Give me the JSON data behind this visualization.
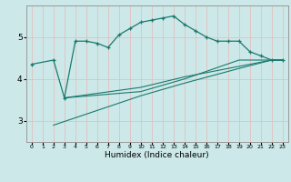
{
  "title": "",
  "xlabel": "Humidex (Indice chaleur)",
  "ylabel": "",
  "bg_color": "#cce8e8",
  "line_color": "#1a7a6e",
  "grid_color": "#b8d4d4",
  "xlim": [
    -0.5,
    23.5
  ],
  "ylim": [
    2.5,
    5.75
  ],
  "yticks": [
    3,
    4,
    5
  ],
  "xticks": [
    0,
    1,
    2,
    3,
    4,
    5,
    6,
    7,
    8,
    9,
    10,
    11,
    12,
    13,
    14,
    15,
    16,
    17,
    18,
    19,
    20,
    21,
    22,
    23
  ],
  "line1": {
    "x": [
      0,
      2,
      3,
      4,
      5,
      6,
      7,
      8,
      9,
      10,
      11,
      12,
      13,
      14,
      15,
      16,
      17,
      18,
      19,
      20,
      21,
      22,
      23
    ],
    "y": [
      4.35,
      4.45,
      3.55,
      4.9,
      4.9,
      4.85,
      4.75,
      5.05,
      5.2,
      5.35,
      5.4,
      5.45,
      5.5,
      5.3,
      5.15,
      5.0,
      4.9,
      4.9,
      4.9,
      4.65,
      4.55,
      4.45,
      4.45
    ]
  },
  "line2": {
    "x": [
      3,
      10,
      14,
      19,
      22,
      23
    ],
    "y": [
      3.55,
      3.7,
      4.0,
      4.45,
      4.45,
      4.45
    ]
  },
  "line3": {
    "x": [
      3,
      10,
      14,
      19,
      22,
      23
    ],
    "y": [
      3.55,
      3.8,
      4.05,
      4.3,
      4.45,
      4.45
    ]
  },
  "line4": {
    "x": [
      2,
      10,
      14,
      19,
      22,
      23
    ],
    "y": [
      2.9,
      3.6,
      3.9,
      4.25,
      4.45,
      4.45
    ]
  }
}
